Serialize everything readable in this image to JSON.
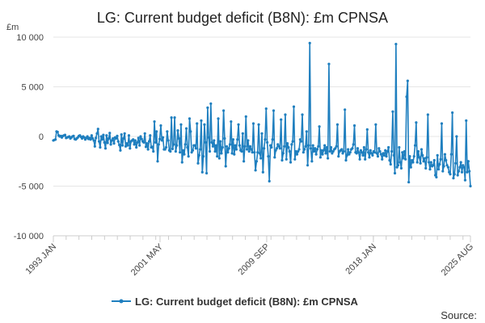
{
  "chart_data": {
    "type": "line",
    "title": "LG: Current budget deficit (B8N): £m CPNSA",
    "unit_label": "£m",
    "ylabel": "",
    "xlabel": "",
    "ylim": [
      -10000,
      10000
    ],
    "yticks": [
      10000,
      5000,
      0,
      -5000,
      -10000
    ],
    "ytick_labels": [
      "10 000",
      "5 000",
      "0",
      "-5 000",
      "-10 000"
    ],
    "xticks": [
      {
        "label": "1993 JAN",
        "value": "1993-01"
      },
      {
        "label": "2001 MAY",
        "value": "2001-05"
      },
      {
        "label": "2009 SEP",
        "value": "2009-09"
      },
      {
        "label": "2018 JAN",
        "value": "2018-01"
      },
      {
        "label": "2025 AUG",
        "value": "2025-08"
      }
    ],
    "x_start": "1993-01",
    "grid": true,
    "legend_position": "bottom",
    "series": [
      {
        "name": "LG: Current budget deficit (B8N): £m CPNSA",
        "color": "#1f7fbf",
        "values": [
          -400,
          -350,
          -300,
          500,
          450,
          100,
          0,
          50,
          -100,
          50,
          100,
          150,
          -150,
          -100,
          -50,
          0,
          -200,
          -100,
          0,
          50,
          -250,
          -300,
          -200,
          -100,
          50,
          100,
          -50,
          -200,
          0,
          -100,
          -300,
          -150,
          0,
          -250,
          -150,
          -300,
          100,
          -200,
          -400,
          -1000,
          -150,
          300,
          750,
          -500,
          -1100,
          0,
          -300,
          150,
          -600,
          -1200,
          100,
          -650,
          -200,
          350,
          -800,
          -400,
          -200,
          -700,
          -100,
          -200,
          50,
          -500,
          -850,
          -1400,
          200,
          -900,
          -200,
          300,
          -1000,
          -700,
          -900,
          100,
          -1200,
          -500,
          -400,
          -300,
          -800,
          -400,
          -1100,
          -600,
          -150,
          -900,
          0,
          -250,
          -500,
          -600,
          300,
          -1050,
          -700,
          -1300,
          -500,
          100,
          -1100,
          -1050,
          -1500,
          1500,
          -600,
          500,
          -2500,
          -800,
          -250,
          1100,
          -400,
          -100,
          -1300,
          -1300,
          -1100,
          500,
          -400,
          -1400,
          -1500,
          1900,
          -1250,
          -800,
          1900,
          -1500,
          -900,
          600,
          -200,
          -1600,
          1200,
          -2600,
          -1400,
          -1800,
          -800,
          800,
          -1100,
          -2000,
          1800,
          500,
          -1600,
          -1400,
          -900,
          -900,
          -1200,
          1300,
          -2700,
          -1900,
          -1300,
          1600,
          -3600,
          -2000,
          1200,
          -600,
          -3700,
          2900,
          -100,
          -1500,
          3300,
          -600,
          -1000,
          -400,
          -1500,
          -900,
          -2000,
          1800,
          -2200,
          -500,
          -1700,
          -1100,
          2600,
          -200,
          -3000,
          -1000,
          -1600,
          -1200,
          -800,
          1500,
          -1700,
          -300,
          -1800,
          -900,
          -1300,
          -300,
          1200,
          -900,
          -1400,
          -1500,
          300,
          -2500,
          -1000,
          2000,
          -1300,
          -400,
          -1500,
          -1000,
          -1300,
          -1600,
          1300,
          -1600,
          -3400,
          -2500,
          -1600,
          1200,
          -1700,
          -2200,
          300,
          -3600,
          -1200,
          -300,
          2800,
          -600,
          -2000,
          -4500,
          -900,
          -1100,
          -300,
          2600,
          -2100,
          -1400,
          -1200,
          -800,
          -1000,
          -1200,
          1700,
          -2400,
          -1700,
          -1000,
          2200,
          -2300,
          -700,
          -1100,
          -1500,
          -2600,
          -800,
          -500,
          3000,
          -2300,
          -1500,
          -1800,
          -1500,
          -1300,
          -300,
          -500,
          2200,
          -1600,
          -1300,
          -1000,
          500,
          -2900,
          -900,
          9400,
          -1200,
          -2500,
          -900,
          -1500,
          -1200,
          -1800,
          -1300,
          -1000,
          1000,
          -2100,
          -1400,
          -1800,
          -1400,
          -900,
          -1700,
          -1100,
          -2200,
          7300,
          -1500,
          -1100,
          -1700,
          -1500,
          -1300,
          -1200,
          -1000,
          1200,
          -2000,
          -1500,
          -1400,
          -1300,
          -1700,
          -1500,
          2700,
          -2400,
          -1900,
          -1300,
          -1800,
          -1600,
          -1300,
          -1200,
          -800,
          1100,
          -1600,
          -1700,
          -1200,
          -1600,
          -2300,
          -1400,
          -1600,
          -1900,
          -1100,
          -2300,
          -1300,
          700,
          -1600,
          -2100,
          -1400,
          -1700,
          -1900,
          -1500,
          -1600,
          1200,
          -1700,
          -2000,
          -1200,
          -1500,
          -1800,
          -2300,
          -1700,
          -1900,
          -1400,
          -2000,
          -1500,
          -1100,
          -2400,
          -2800,
          -1500,
          2500,
          -1900,
          -3700,
          9300,
          -3100,
          -2900,
          -1100,
          -2600,
          -3200,
          -1600,
          -2200,
          -1500,
          -2300,
          4000,
          5600,
          -4600,
          -2000,
          -3100,
          -2400,
          -2600,
          -2000,
          -900,
          1400,
          -2600,
          -1500,
          -2100,
          -2700,
          -1300,
          -1900,
          -2500,
          -2200,
          -3200,
          -2100,
          2200,
          -2600,
          -3300,
          -2600,
          -3000,
          -2900,
          -2400,
          -3900,
          -4100,
          -1900,
          -3300,
          -2800,
          -2300,
          1300,
          -3500,
          -3000,
          -1800,
          -2400,
          -2900,
          -3100,
          -3600,
          -3800,
          -1800,
          2400,
          -4200,
          -3800,
          -2700,
          0,
          -3900,
          -3500,
          -3100,
          -2600,
          -3600,
          -2900,
          -3100,
          -4400,
          1600,
          -3600,
          -2500,
          -3500,
          -5000
        ]
      }
    ]
  },
  "legend": {
    "label": "LG: Current budget deficit (B8N): £m CPNSA"
  },
  "source": {
    "label": "Source:"
  }
}
